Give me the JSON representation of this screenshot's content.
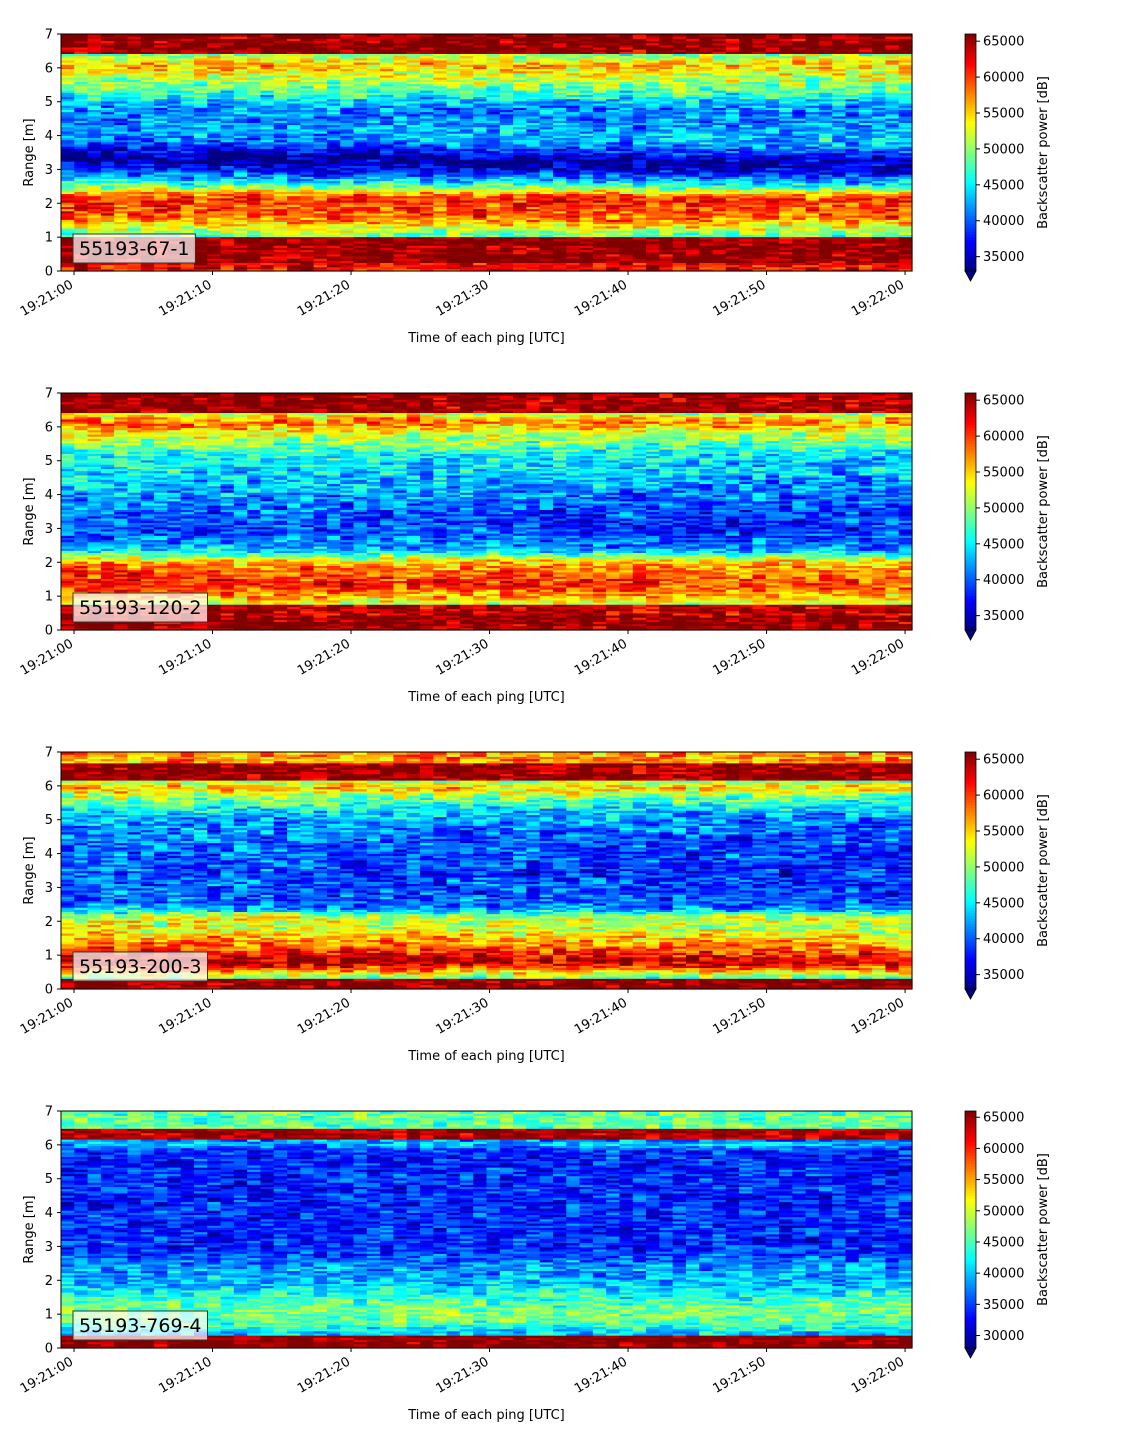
{
  "chart_data": [
    {
      "type": "heatmap",
      "label": "55193-67-1",
      "profile": "p1",
      "x_label": "Time of each ping [UTC]",
      "y_label": "Range [m]",
      "x_range": [
        "19:21:00",
        "19:22:00"
      ],
      "x_ticks": [
        "19:21:00",
        "19:21:10",
        "19:21:20",
        "19:21:30",
        "19:21:40",
        "19:21:50",
        "19:22:00"
      ],
      "y_range": [
        0,
        7
      ],
      "y_ticks": [
        0,
        1,
        2,
        3,
        4,
        5,
        6,
        7
      ],
      "colorbar": {
        "label": "Backscatter power [dB]",
        "min": 33000,
        "max": 66000,
        "ticks": [
          35000,
          40000,
          45000,
          50000,
          55000,
          60000,
          65000
        ],
        "colormap": "jet",
        "extend": "min"
      }
    },
    {
      "type": "heatmap",
      "label": "55193-120-2",
      "profile": "p2",
      "x_label": "Time of each ping [UTC]",
      "y_label": "Range [m]",
      "x_range": [
        "19:21:00",
        "19:22:00"
      ],
      "x_ticks": [
        "19:21:00",
        "19:21:10",
        "19:21:20",
        "19:21:30",
        "19:21:40",
        "19:21:50",
        "19:22:00"
      ],
      "y_range": [
        0,
        7
      ],
      "y_ticks": [
        0,
        1,
        2,
        3,
        4,
        5,
        6,
        7
      ],
      "colorbar": {
        "label": "Backscatter power [dB]",
        "min": 33000,
        "max": 66000,
        "ticks": [
          35000,
          40000,
          45000,
          50000,
          55000,
          60000,
          65000
        ],
        "colormap": "jet",
        "extend": "min"
      }
    },
    {
      "type": "heatmap",
      "label": "55193-200-3",
      "profile": "p3",
      "x_label": "Time of each ping [UTC]",
      "y_label": "Range [m]",
      "x_range": [
        "19:21:00",
        "19:22:00"
      ],
      "x_ticks": [
        "19:21:00",
        "19:21:10",
        "19:21:20",
        "19:21:30",
        "19:21:40",
        "19:21:50",
        "19:22:00"
      ],
      "y_range": [
        0,
        7
      ],
      "y_ticks": [
        0,
        1,
        2,
        3,
        4,
        5,
        6,
        7
      ],
      "colorbar": {
        "label": "Backscatter power [dB]",
        "min": 33000,
        "max": 66000,
        "ticks": [
          35000,
          40000,
          45000,
          50000,
          55000,
          60000,
          65000
        ],
        "colormap": "jet",
        "extend": "min"
      }
    },
    {
      "type": "heatmap",
      "label": "55193-769-4",
      "profile": "p4",
      "x_label": "Time of each ping [UTC]",
      "y_label": "Range [m]",
      "x_range": [
        "19:21:00",
        "19:22:00"
      ],
      "x_ticks": [
        "19:21:00",
        "19:21:10",
        "19:21:20",
        "19:21:30",
        "19:21:40",
        "19:21:50",
        "19:22:00"
      ],
      "y_range": [
        0,
        7
      ],
      "y_ticks": [
        0,
        1,
        2,
        3,
        4,
        5,
        6,
        7
      ],
      "colorbar": {
        "label": "Backscatter power [dB]",
        "min": 28000,
        "max": 66000,
        "ticks": [
          30000,
          35000,
          40000,
          45000,
          50000,
          55000,
          60000,
          65000
        ],
        "colormap": "jet",
        "extend": "min"
      }
    }
  ]
}
